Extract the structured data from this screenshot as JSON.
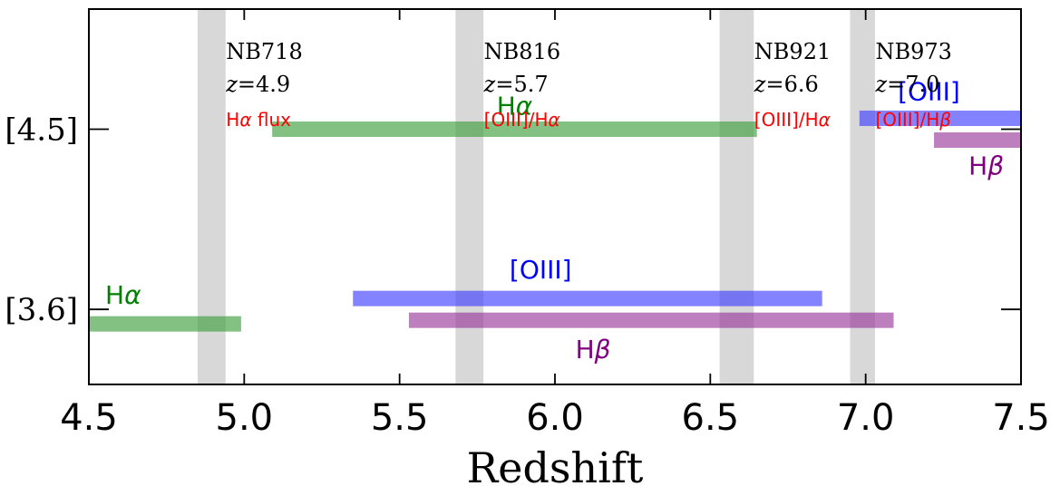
{
  "chart_data": {
    "type": "range",
    "xlabel": "Redshift",
    "xlim": [
      4.5,
      7.5
    ],
    "xticks": [
      "4.5",
      "5.0",
      "5.5",
      "6.0",
      "6.5",
      "7.0",
      "7.5"
    ],
    "ylim": [
      0,
      1
    ],
    "rows": [
      {
        "label": "[4.5]",
        "y": 0.68
      },
      {
        "label": "[3.6]",
        "y": 0.2
      }
    ],
    "bands": [
      {
        "filter": "NB718",
        "z": "z=4.9",
        "note": "Hα flux",
        "range": [
          4.85,
          4.94
        ]
      },
      {
        "filter": "NB816",
        "z": "z=5.7",
        "note": "[OIII]/Hα",
        "range": [
          5.68,
          5.77
        ]
      },
      {
        "filter": "NB921",
        "z": "z=6.6",
        "note": "[OIII]/Hα",
        "range": [
          6.53,
          6.64
        ]
      },
      {
        "filter": "NB973",
        "z": "z=7.0",
        "note": "[OIII]/Hβ",
        "range": [
          6.95,
          7.03
        ]
      }
    ],
    "lines": [
      {
        "row": "[4.5]",
        "name": "Hα",
        "color": "#3fa03f",
        "range": [
          5.09,
          6.65
        ]
      },
      {
        "row": "[4.5]",
        "name": "[OIII]",
        "color": "#4040ff",
        "range": [
          6.98,
          7.5
        ]
      },
      {
        "row": "[4.5]",
        "name": "Hβ",
        "color": "#9a3a9a",
        "range": [
          7.22,
          7.5
        ]
      },
      {
        "row": "[3.6]",
        "name": "Hα",
        "color": "#3fa03f",
        "range": [
          4.5,
          4.99
        ]
      },
      {
        "row": "[3.6]",
        "name": "[OIII]",
        "color": "#4040ff",
        "range": [
          5.35,
          6.86
        ]
      },
      {
        "row": "[3.6]",
        "name": "Hβ",
        "color": "#9a3a9a",
        "range": [
          5.53,
          7.09
        ]
      }
    ],
    "colors": {
      "band": "#d8d8d8",
      "note": "#ff0000",
      "label_green": "#008000",
      "label_blue": "#0000ff",
      "label_purple": "#800080"
    }
  }
}
